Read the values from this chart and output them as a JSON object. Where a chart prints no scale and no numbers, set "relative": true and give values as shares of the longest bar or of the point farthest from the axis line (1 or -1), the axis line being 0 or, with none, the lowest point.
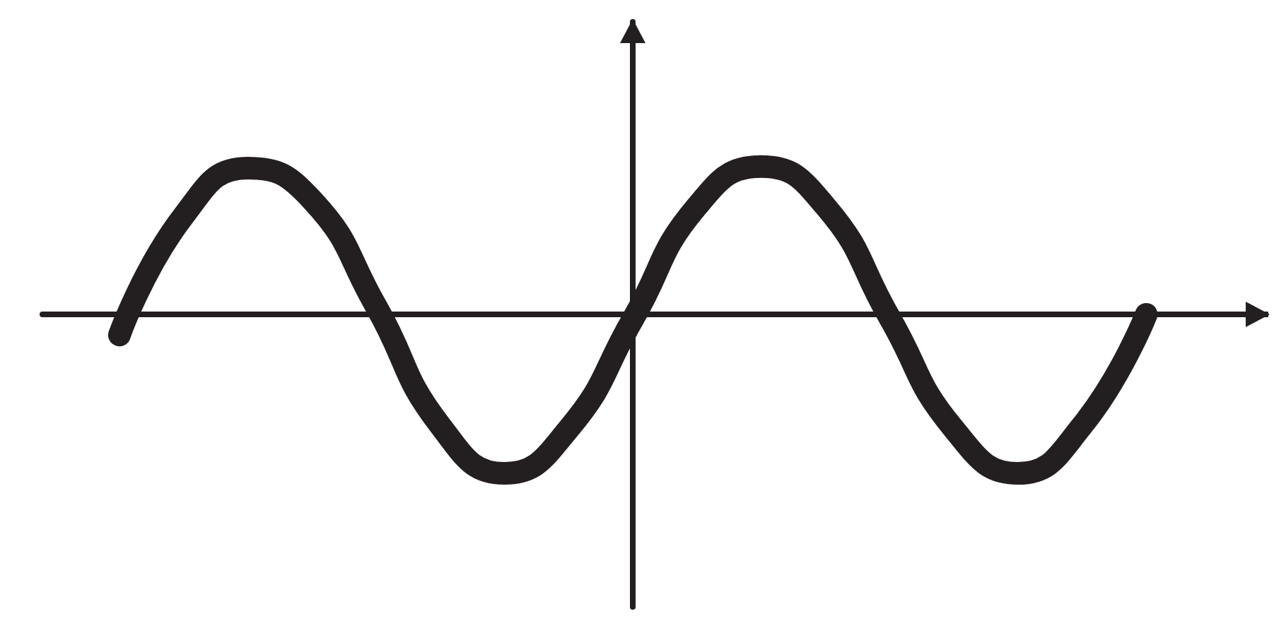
{
  "chart_data": {
    "type": "line",
    "relative": true,
    "color": "#231f20",
    "categories": [
      null,
      null,
      null,
      null,
      null,
      null,
      null,
      null,
      null,
      null,
      null,
      null,
      null,
      null,
      null,
      null,
      null
    ],
    "values": [
      -0.13,
      0.62,
      0.92,
      0.72,
      0.05,
      -0.7,
      -1.0,
      -0.72,
      -0.03,
      0.68,
      0.93,
      0.68,
      -0.02,
      -0.72,
      -1.0,
      -0.7,
      0.0
    ]
  }
}
